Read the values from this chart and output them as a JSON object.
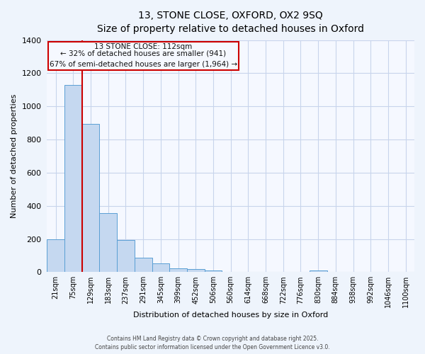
{
  "title_line1": "13, STONE CLOSE, OXFORD, OX2 9SQ",
  "title_line2": "Size of property relative to detached houses in Oxford",
  "xlabel": "Distribution of detached houses by size in Oxford",
  "ylabel": "Number of detached properties",
  "bar_color": "#c5d8f0",
  "bar_edge_color": "#5a9fd4",
  "background_color": "#eef4fc",
  "plot_bg_color": "#f5f8ff",
  "grid_color": "#c8d4ec",
  "annotation_box_color": "#cc0000",
  "property_line_color": "#cc0000",
  "categories": [
    "21sqm",
    "75sqm",
    "129sqm",
    "183sqm",
    "237sqm",
    "291sqm",
    "345sqm",
    "399sqm",
    "452sqm",
    "506sqm",
    "560sqm",
    "614sqm",
    "668sqm",
    "722sqm",
    "776sqm",
    "830sqm",
    "884sqm",
    "938sqm",
    "992sqm",
    "1046sqm",
    "1100sqm"
  ],
  "values": [
    200,
    1130,
    893,
    354,
    195,
    88,
    54,
    23,
    20,
    12,
    0,
    0,
    0,
    0,
    0,
    10,
    0,
    0,
    0,
    0,
    0
  ],
  "property_bar_index": 1,
  "annotation_text_line1": "13 STONE CLOSE: 112sqm",
  "annotation_text_line2": "← 32% of detached houses are smaller (941)",
  "annotation_text_line3": "67% of semi-detached houses are larger (1,964) →",
  "ylim_max": 1400,
  "yticks": [
    0,
    200,
    400,
    600,
    800,
    1000,
    1200,
    1400
  ],
  "footer_line1": "Contains HM Land Registry data © Crown copyright and database right 2025.",
  "footer_line2": "Contains public sector information licensed under the Open Government Licence v3.0."
}
